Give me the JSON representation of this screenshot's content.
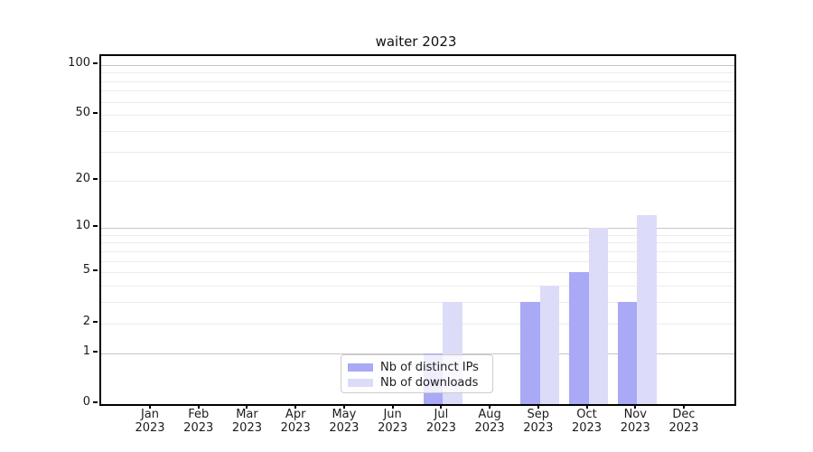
{
  "title": "waiter 2023",
  "chart_data": {
    "type": "bar",
    "title": "waiter 2023",
    "categories": [
      "Jan 2023",
      "Feb 2023",
      "Mar 2023",
      "Apr 2023",
      "May 2023",
      "Jun 2023",
      "Jul 2023",
      "Aug 2023",
      "Sep 2023",
      "Oct 2023",
      "Nov 2023",
      "Dec 2023"
    ],
    "series": [
      {
        "name": "Nb of distinct IPs",
        "color": "#a9a9f5",
        "values": [
          0,
          0,
          0,
          0,
          0,
          0,
          1,
          0,
          3,
          5,
          3,
          0
        ]
      },
      {
        "name": "Nb of downloads",
        "color": "#dcdcf9",
        "values": [
          0,
          0,
          0,
          0,
          0,
          0,
          3,
          0,
          4,
          10,
          12,
          0
        ]
      }
    ],
    "xlabel": "",
    "ylabel": "",
    "yscale": "log1p",
    "ylim": [
      0,
      113
    ],
    "ytick_labels": [
      0,
      1,
      2,
      5,
      10,
      20,
      50,
      100
    ],
    "major_gridlines": [
      1,
      10,
      100
    ],
    "minor_gridlines": [
      2,
      3,
      4,
      5,
      6,
      7,
      8,
      9,
      20,
      30,
      40,
      50,
      60,
      70,
      80,
      90
    ],
    "grid": true,
    "legend_position": "lower center"
  },
  "legend": {
    "items": [
      {
        "label": "Nb of distinct IPs",
        "color": "#a9a9f5"
      },
      {
        "label": "Nb of downloads",
        "color": "#dcdcf9"
      }
    ]
  },
  "colors": {
    "bar_distinct_ips": "#a9a9f5",
    "bar_downloads": "#dcdcf9",
    "major_grid": "#c6c6c6",
    "minor_grid": "#ebebeb",
    "axis": "#000000",
    "text": "#1c1c1c",
    "legend_border": "#cccccc"
  }
}
